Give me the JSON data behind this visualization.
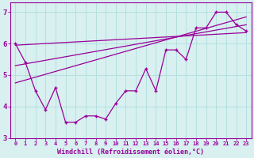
{
  "zigzag_x": [
    0,
    1,
    2,
    3,
    4,
    5,
    6,
    7,
    8,
    9,
    10,
    11,
    12,
    13,
    14,
    15,
    16,
    17,
    18,
    19,
    20,
    21,
    22,
    23
  ],
  "zigzag_y": [
    6.0,
    5.4,
    4.5,
    3.9,
    4.6,
    3.5,
    3.5,
    3.7,
    3.7,
    3.6,
    4.1,
    4.5,
    4.5,
    5.2,
    4.5,
    5.8,
    5.8,
    5.5,
    6.5,
    6.5,
    7.0,
    7.0,
    6.6,
    6.4
  ],
  "trend1_x": [
    0,
    23
  ],
  "trend1_y": [
    5.95,
    6.35
  ],
  "trend2_x": [
    0,
    23
  ],
  "trend2_y": [
    5.3,
    6.6
  ],
  "trend3_x": [
    0,
    23
  ],
  "trend3_y": [
    4.75,
    6.85
  ],
  "line_color": "#990099",
  "bg_color": "#d8f0f0",
  "grid_color": "#b0dede",
  "xlabel": "Windchill (Refroidissement éolien,°C)",
  "xlim": [
    -0.5,
    23.5
  ],
  "ylim": [
    3.0,
    7.3
  ],
  "yticks": [
    3,
    4,
    5,
    6,
    7
  ],
  "xticks": [
    0,
    1,
    2,
    3,
    4,
    5,
    6,
    7,
    8,
    9,
    10,
    11,
    12,
    13,
    14,
    15,
    16,
    17,
    18,
    19,
    20,
    21,
    22,
    23
  ]
}
